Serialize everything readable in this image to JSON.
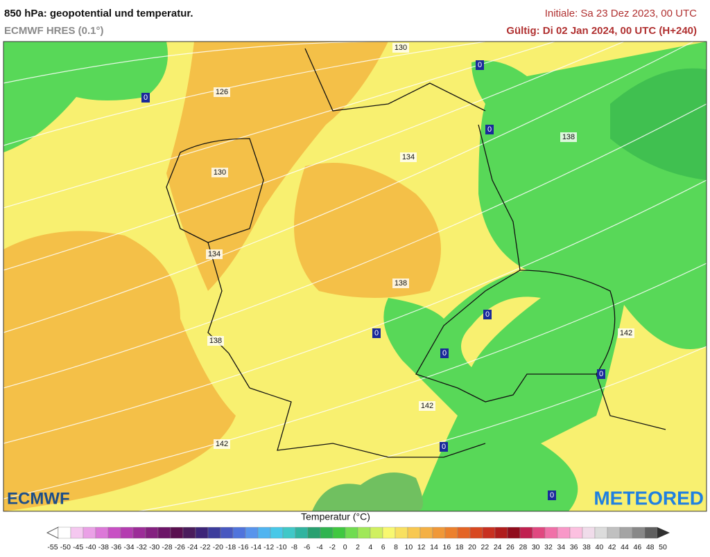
{
  "header": {
    "title": "850 hPa: geopotential und temperatur.",
    "model": "ECMWF HRES (0.1°)",
    "initiale": "Initiale: Sa 23 Dez 2023, 00 UTC",
    "gueltig": "Gültig: Di 02 Jan 2024, 00 UTC (H+240)"
  },
  "map": {
    "contour_labels": [
      130,
      126,
      130,
      134,
      134,
      138,
      138,
      138,
      142,
      142,
      142
    ],
    "zero_labels": [
      0,
      0,
      0,
      0,
      0,
      0,
      0,
      0,
      0
    ],
    "logo_left": "ECMWF",
    "logo_right": "METEORED"
  },
  "legend": {
    "title": "Temperatur (°C)",
    "ticks": [
      -55,
      -50,
      -45,
      -40,
      -38,
      -36,
      -34,
      -32,
      -30,
      -28,
      -26,
      -24,
      -22,
      -20,
      -18,
      -16,
      -14,
      -12,
      -10,
      -8,
      -6,
      -4,
      -2,
      0,
      2,
      4,
      6,
      8,
      10,
      12,
      14,
      16,
      18,
      20,
      22,
      24,
      26,
      28,
      30,
      32,
      34,
      36,
      38,
      40,
      42,
      44,
      46,
      48,
      50
    ],
    "colors": [
      "#ffffff",
      "#f5c8f0",
      "#eaa0e6",
      "#dc78d8",
      "#c850c4",
      "#b43cb0",
      "#9c2c98",
      "#842080",
      "#6c1468",
      "#5a1050",
      "#4a1c5c",
      "#3c2478",
      "#3c3c9c",
      "#4858c0",
      "#5074dc",
      "#5894ec",
      "#50b4f0",
      "#48c8e8",
      "#40c8c8",
      "#30b4a0",
      "#28a070",
      "#30b450",
      "#40c840",
      "#70dc50",
      "#a0e858",
      "#d0f060",
      "#f8f870",
      "#f8e060",
      "#f8c850",
      "#f4b044",
      "#f09838",
      "#ec802c",
      "#e46424",
      "#d84820",
      "#c83020",
      "#b01c1c",
      "#900c1c",
      "#c02050",
      "#e04880",
      "#f070a8",
      "#f898c8",
      "#fcc0e0",
      "#f0dcea",
      "#dcdcdc",
      "#c0c0c0",
      "#a4a4a4",
      "#888888",
      "#606060"
    ]
  }
}
